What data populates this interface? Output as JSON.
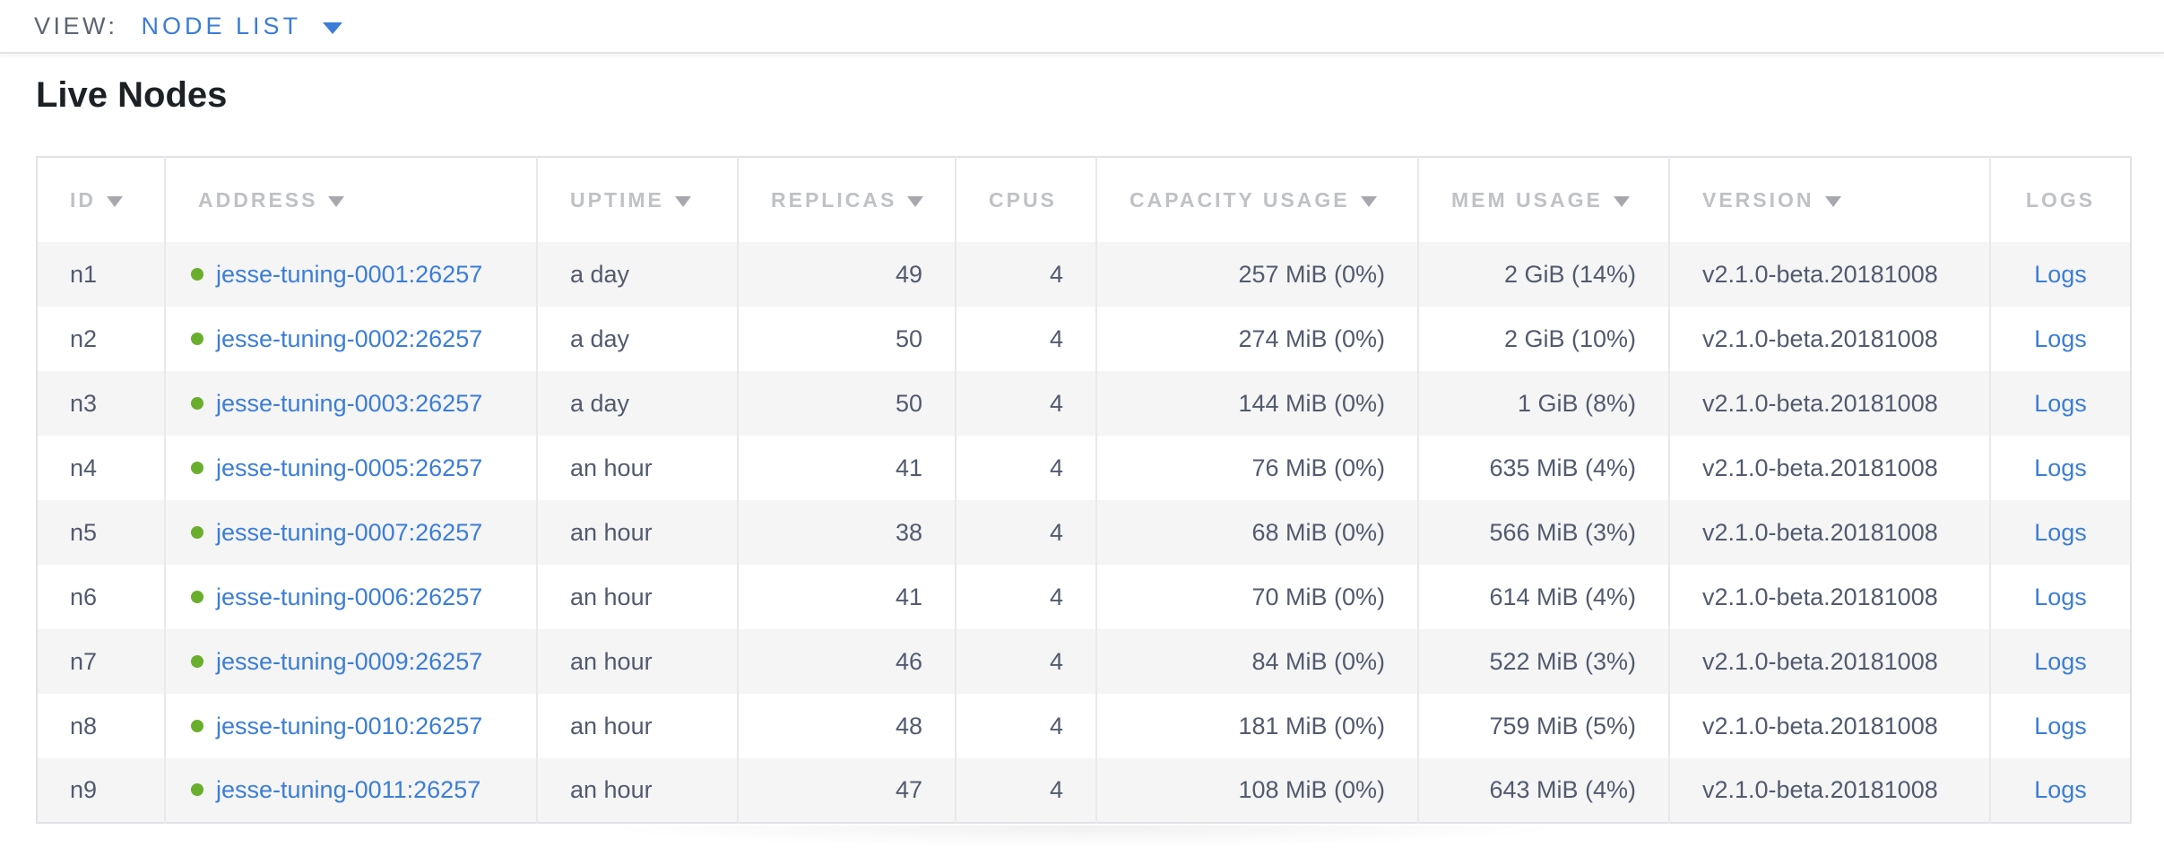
{
  "view_bar": {
    "label": "VIEW:",
    "selected_view": "NODE LIST"
  },
  "page": {
    "title": "Live Nodes"
  },
  "table": {
    "columns": [
      {
        "label": "ID",
        "sortable": true
      },
      {
        "label": "ADDRESS",
        "sortable": true
      },
      {
        "label": "UPTIME",
        "sortable": true
      },
      {
        "label": "REPLICAS",
        "sortable": true
      },
      {
        "label": "CPUS",
        "sortable": false
      },
      {
        "label": "CAPACITY USAGE",
        "sortable": true
      },
      {
        "label": "MEM USAGE",
        "sortable": true
      },
      {
        "label": "VERSION",
        "sortable": true
      },
      {
        "label": "LOGS",
        "sortable": false
      }
    ],
    "rows": [
      {
        "id": "n1",
        "status": "healthy",
        "address": "jesse-tuning-0001:26257",
        "uptime": "a day",
        "replicas": "49",
        "cpus": "4",
        "capacity_usage": "257 MiB (0%)",
        "mem_usage": "2 GiB (14%)",
        "version": "v2.1.0-beta.20181008",
        "logs": "Logs"
      },
      {
        "id": "n2",
        "status": "healthy",
        "address": "jesse-tuning-0002:26257",
        "uptime": "a day",
        "replicas": "50",
        "cpus": "4",
        "capacity_usage": "274 MiB (0%)",
        "mem_usage": "2 GiB (10%)",
        "version": "v2.1.0-beta.20181008",
        "logs": "Logs"
      },
      {
        "id": "n3",
        "status": "healthy",
        "address": "jesse-tuning-0003:26257",
        "uptime": "a day",
        "replicas": "50",
        "cpus": "4",
        "capacity_usage": "144 MiB (0%)",
        "mem_usage": "1 GiB (8%)",
        "version": "v2.1.0-beta.20181008",
        "logs": "Logs"
      },
      {
        "id": "n4",
        "status": "healthy",
        "address": "jesse-tuning-0005:26257",
        "uptime": "an hour",
        "replicas": "41",
        "cpus": "4",
        "capacity_usage": "76 MiB (0%)",
        "mem_usage": "635 MiB (4%)",
        "version": "v2.1.0-beta.20181008",
        "logs": "Logs"
      },
      {
        "id": "n5",
        "status": "healthy",
        "address": "jesse-tuning-0007:26257",
        "uptime": "an hour",
        "replicas": "38",
        "cpus": "4",
        "capacity_usage": "68 MiB (0%)",
        "mem_usage": "566 MiB (3%)",
        "version": "v2.1.0-beta.20181008",
        "logs": "Logs"
      },
      {
        "id": "n6",
        "status": "healthy",
        "address": "jesse-tuning-0006:26257",
        "uptime": "an hour",
        "replicas": "41",
        "cpus": "4",
        "capacity_usage": "70 MiB (0%)",
        "mem_usage": "614 MiB (4%)",
        "version": "v2.1.0-beta.20181008",
        "logs": "Logs"
      },
      {
        "id": "n7",
        "status": "healthy",
        "address": "jesse-tuning-0009:26257",
        "uptime": "an hour",
        "replicas": "46",
        "cpus": "4",
        "capacity_usage": "84 MiB (0%)",
        "mem_usage": "522 MiB (3%)",
        "version": "v2.1.0-beta.20181008",
        "logs": "Logs"
      },
      {
        "id": "n8",
        "status": "healthy",
        "address": "jesse-tuning-0010:26257",
        "uptime": "an hour",
        "replicas": "48",
        "cpus": "4",
        "capacity_usage": "181 MiB (0%)",
        "mem_usage": "759 MiB (5%)",
        "version": "v2.1.0-beta.20181008",
        "logs": "Logs"
      },
      {
        "id": "n9",
        "status": "healthy",
        "address": "jesse-tuning-0011:26257",
        "uptime": "an hour",
        "replicas": "47",
        "cpus": "4",
        "capacity_usage": "108 MiB (0%)",
        "mem_usage": "643 MiB (4%)",
        "version": "v2.1.0-beta.20181008",
        "logs": "Logs"
      }
    ]
  },
  "colors": {
    "accent_blue": "#3b7dd8",
    "healthy_green": "#6aae2d",
    "header_gray": "#bfc1c5",
    "cell_text": "#525a6e"
  }
}
